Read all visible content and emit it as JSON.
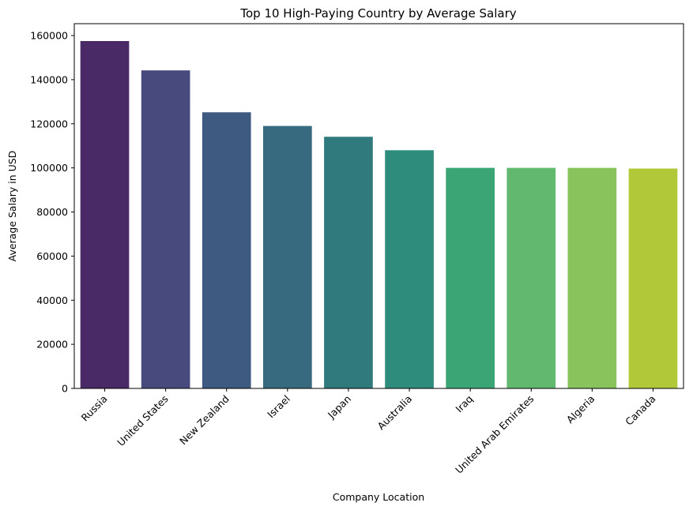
{
  "chart_data": {
    "type": "bar",
    "title": "Top 10 High-Paying Country by Average Salary",
    "xlabel": "Company Location",
    "ylabel": "Average Salary in USD",
    "categories": [
      "Russia",
      "United States",
      "New Zealand",
      "Israel",
      "Japan",
      "Australia",
      "Iraq",
      "United Arab Emirates",
      "Algeria",
      "Canada"
    ],
    "values": [
      157500,
      144200,
      125200,
      119000,
      114100,
      108000,
      100000,
      100000,
      100000,
      99700
    ],
    "colors": [
      "#4a2967",
      "#484a7e",
      "#3f5a81",
      "#376a7f",
      "#307a7d",
      "#2e8c7c",
      "#3ba576",
      "#62b86f",
      "#88c35b",
      "#b1c839"
    ],
    "yticks": [
      0,
      20000,
      40000,
      60000,
      80000,
      100000,
      120000,
      140000,
      160000
    ],
    "ylim": [
      0,
      165375
    ],
    "grid": false,
    "legend": "none"
  }
}
